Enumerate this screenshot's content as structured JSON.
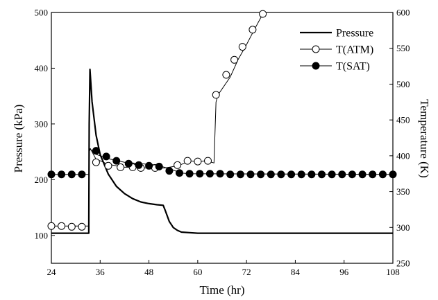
{
  "chart_data": {
    "type": "line",
    "xlabel": "Time (hr)",
    "ylabel_left": "Pressure (kPa)",
    "ylabel_right": "Temperature (K)",
    "xlim": [
      24,
      108
    ],
    "ylim_left": [
      50,
      500
    ],
    "ylim_right": [
      250,
      600
    ],
    "x_ticks": [
      24,
      36,
      48,
      60,
      72,
      84,
      96,
      108
    ],
    "y_left_ticks": [
      100,
      200,
      300,
      400,
      500
    ],
    "y_right_ticks": [
      250,
      300,
      350,
      400,
      450,
      500,
      550,
      600
    ],
    "legend_position": "top-right",
    "series": [
      {
        "name": "Pressure",
        "axis": "left",
        "color": "#000000",
        "marker": "none",
        "x": [
          24,
          33.2,
          33.3,
          33.5,
          34,
          35,
          36,
          38,
          40,
          42,
          44,
          46,
          48,
          50,
          51.5,
          52,
          53,
          54,
          55,
          56,
          58,
          60,
          65,
          70,
          80,
          90,
          100,
          108
        ],
        "y": [
          104,
          104,
          300,
          398,
          340,
          280,
          245,
          210,
          188,
          175,
          166,
          160,
          157,
          155,
          154,
          145,
          125,
          114,
          109,
          106,
          105,
          104,
          104,
          104,
          104,
          104,
          104,
          104
        ]
      },
      {
        "name": "T(ATM)",
        "axis": "right",
        "color": "#000000",
        "marker": "open-circle",
        "x": [
          24,
          33.2,
          33.3,
          33.6,
          35,
          36,
          38,
          40,
          42,
          44,
          46,
          48,
          50,
          52,
          54,
          56,
          58,
          60,
          62,
          64,
          64.5,
          65,
          68,
          70,
          72,
          74,
          76
        ],
        "y": [
          302,
          302,
          405,
          410,
          395,
          393,
          388,
          386,
          384,
          384,
          383,
          383,
          383,
          383,
          385,
          388,
          393,
          392,
          393,
          390,
          475,
          485,
          510,
          535,
          555,
          577,
          598
        ],
        "marker_x": [
          24,
          26.5,
          29,
          31.5,
          35,
          38,
          41,
          44,
          46,
          49.5,
          55,
          57.5,
          60,
          62.5,
          64.5,
          67,
          69,
          71,
          73.5,
          76
        ],
        "marker_y": [
          302,
          302,
          301,
          301,
          391,
          386,
          384,
          384,
          383,
          383,
          387,
          393,
          392,
          393,
          485,
          513,
          534,
          552,
          576,
          598
        ]
      },
      {
        "name": "T(SAT)",
        "axis": "right",
        "color": "#000000",
        "marker": "filled-circle",
        "x": [
          24,
          33.2,
          33.4,
          35,
          38,
          42,
          46,
          50,
          53,
          56,
          58,
          108
        ],
        "y": [
          374,
          374,
          410,
          402,
          396,
          391,
          389,
          387,
          382,
          376,
          375,
          374
        ],
        "marker_x": [
          24,
          26.5,
          29,
          31.5,
          35,
          37.5,
          40,
          43,
          45.5,
          48,
          50.5,
          53,
          55.5,
          58,
          60.5,
          63,
          65.5,
          68,
          70.5,
          73,
          75.5,
          78,
          80.5,
          83,
          85.5,
          88,
          90.5,
          93,
          95.5,
          98,
          100.5,
          103,
          105.5,
          108
        ],
        "marker_y": [
          374,
          374,
          374,
          374,
          407,
          399,
          393,
          389,
          387,
          386,
          385,
          379,
          376,
          375,
          375,
          375,
          375,
          374,
          374,
          374,
          374,
          374,
          374,
          374,
          374,
          374,
          374,
          374,
          374,
          374,
          374,
          374,
          374,
          374
        ]
      }
    ]
  }
}
